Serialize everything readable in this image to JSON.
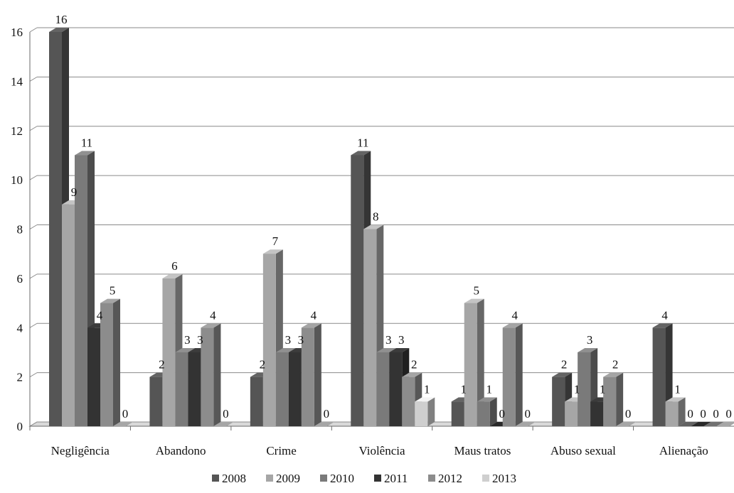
{
  "chart_data": {
    "type": "bar",
    "categories": [
      "Negligência",
      "Abandono",
      "Crime",
      "Violência",
      "Maus tratos",
      "Abuso sexual",
      "Alienação"
    ],
    "series": [
      {
        "name": "2008",
        "values": [
          16,
          2,
          2,
          11,
          1,
          2,
          4
        ]
      },
      {
        "name": "2009",
        "values": [
          9,
          6,
          7,
          8,
          5,
          1,
          1
        ]
      },
      {
        "name": "2010",
        "values": [
          11,
          3,
          3,
          3,
          1,
          3,
          0
        ]
      },
      {
        "name": "2011",
        "values": [
          4,
          3,
          3,
          3,
          0,
          1,
          0
        ]
      },
      {
        "name": "2012",
        "values": [
          5,
          4,
          4,
          2,
          4,
          2,
          0
        ]
      },
      {
        "name": "2013",
        "values": [
          0,
          0,
          0,
          1,
          0,
          0,
          0
        ]
      }
    ],
    "yticks": [
      "0",
      "2",
      "4",
      "6",
      "8",
      "10",
      "12",
      "14",
      "16"
    ],
    "ylim": [
      0,
      16
    ],
    "grid": true,
    "legend_position": "bottom",
    "colors": [
      "#555555",
      "#a6a6a6",
      "#7a7a7a",
      "#333333",
      "#8c8c8c",
      "#cfcfcf"
    ]
  }
}
